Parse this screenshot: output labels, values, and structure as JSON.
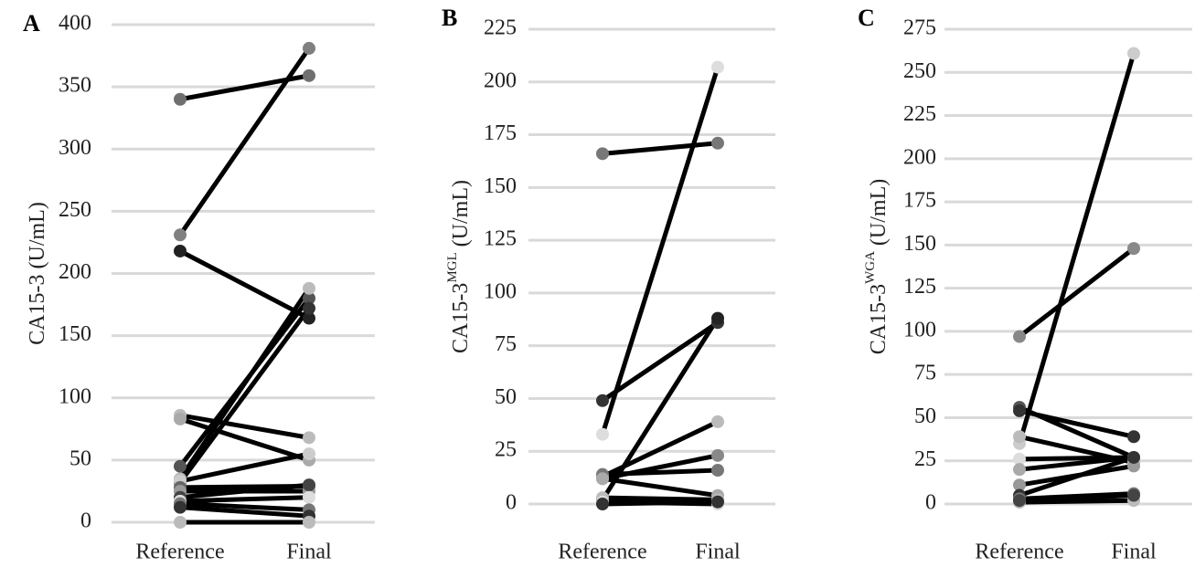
{
  "chart_data": [
    {
      "type": "slope",
      "panel": "A",
      "ylabel": "CA15-3",
      "ylabel_unit": "(U/mL)",
      "categories": [
        "Reference",
        "Final"
      ],
      "line_color": "#000000",
      "grid": true,
      "ylim": [
        0,
        400
      ],
      "yticks": [
        0,
        50,
        100,
        150,
        200,
        250,
        300,
        350,
        400
      ],
      "series": [
        {
          "color": "#707070",
          "values": [
            340,
            359
          ]
        },
        {
          "color": "#808080",
          "values": [
            231,
            381
          ]
        },
        {
          "color": "#222222",
          "values": [
            218,
            164
          ]
        },
        {
          "color": "#bbbbbb",
          "values": [
            86,
            68
          ]
        },
        {
          "color": "#aaaaaa",
          "values": [
            83,
            50
          ]
        },
        {
          "color": "#555555",
          "values": [
            45,
            180
          ]
        },
        {
          "color": "#bbbbbb",
          "values": [
            35,
            188
          ]
        },
        {
          "color": "#333333",
          "values": [
            32,
            172
          ]
        },
        {
          "color": "#cccccc",
          "values": [
            33,
            55
          ]
        },
        {
          "color": "#666666",
          "values": [
            28,
            29
          ]
        },
        {
          "color": "#999999",
          "values": [
            25,
            25
          ]
        },
        {
          "color": "#444444",
          "values": [
            20,
            30
          ]
        },
        {
          "color": "#dddddd",
          "values": [
            17,
            20
          ]
        },
        {
          "color": "#777777",
          "values": [
            15,
            10
          ]
        },
        {
          "color": "#333333",
          "values": [
            12,
            5
          ]
        },
        {
          "color": "#bbbbbb",
          "values": [
            0,
            0
          ]
        }
      ]
    },
    {
      "type": "slope",
      "panel": "B",
      "ylabel": "CA15-3",
      "ylabel_sup": "MGL",
      "ylabel_unit": "(U/mL)",
      "categories": [
        "Reference",
        "Final"
      ],
      "line_color": "#000000",
      "grid": true,
      "ylim": [
        0,
        225
      ],
      "yticks": [
        0,
        25,
        50,
        75,
        100,
        125,
        150,
        175,
        200,
        225
      ],
      "series": [
        {
          "color": "#777777",
          "values": [
            166,
            171
          ]
        },
        {
          "color": "#dddddd",
          "values": [
            33,
            207
          ]
        },
        {
          "color": "#333333",
          "values": [
            49,
            86
          ]
        },
        {
          "color": "#222222",
          "values": [
            2,
            88
          ]
        },
        {
          "color": "#bbbbbb",
          "values": [
            13,
            39
          ]
        },
        {
          "color": "#888888",
          "values": [
            12,
            23
          ]
        },
        {
          "color": "#777777",
          "values": [
            14,
            16
          ]
        },
        {
          "color": "#aaaaaa",
          "values": [
            12,
            4
          ]
        },
        {
          "color": "#bbbbbb",
          "values": [
            3,
            2
          ]
        },
        {
          "color": "#dddddd",
          "values": [
            1,
            0
          ]
        },
        {
          "color": "#333333",
          "values": [
            0,
            1
          ]
        }
      ]
    },
    {
      "type": "slope",
      "panel": "C",
      "ylabel": "CA15-3",
      "ylabel_sup": "WGA",
      "ylabel_unit": "(U/mL)",
      "categories": [
        "Reference",
        "Final"
      ],
      "line_color": "#000000",
      "grid": true,
      "ylim": [
        0,
        275
      ],
      "yticks": [
        0,
        25,
        50,
        75,
        100,
        125,
        150,
        175,
        200,
        225,
        250,
        275
      ],
      "series": [
        {
          "color": "#888888",
          "values": [
            97,
            148
          ]
        },
        {
          "color": "#cccccc",
          "values": [
            35,
            261
          ]
        },
        {
          "color": "#555555",
          "values": [
            56,
            27
          ]
        },
        {
          "color": "#333333",
          "values": [
            54,
            39
          ]
        },
        {
          "color": "#bbbbbb",
          "values": [
            39,
            24
          ]
        },
        {
          "color": "#dddddd",
          "values": [
            26,
            27
          ]
        },
        {
          "color": "#aaaaaa",
          "values": [
            20,
            27
          ]
        },
        {
          "color": "#999999",
          "values": [
            11,
            22
          ]
        },
        {
          "color": "#333333",
          "values": [
            5,
            27
          ]
        },
        {
          "color": "#777777",
          "values": [
            3,
            6
          ]
        },
        {
          "color": "#bbbbbb",
          "values": [
            1,
            2
          ]
        },
        {
          "color": "#444444",
          "values": [
            2,
            5
          ]
        }
      ]
    }
  ]
}
